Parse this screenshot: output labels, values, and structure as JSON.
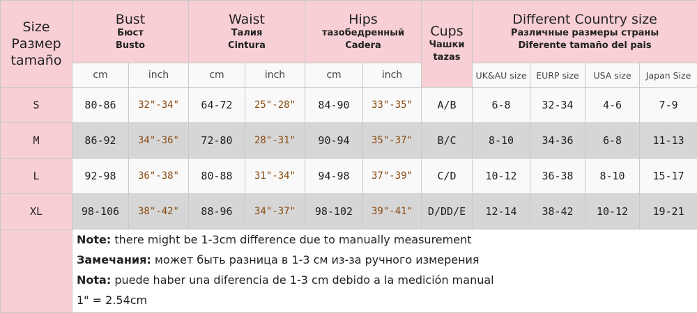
{
  "header": {
    "size": [
      "Size",
      "Размер",
      "tamaño"
    ],
    "bust": {
      "title": "Bust",
      "ru": "Бюст",
      "es": "Busto"
    },
    "waist": {
      "title": "Waist",
      "ru": "Талия",
      "es": "Cintura"
    },
    "hips": {
      "title": "Hips",
      "ru": "тазобедренный",
      "es": "Cadera"
    },
    "cups": {
      "title": "Cups",
      "ru": "Чашки",
      "es": "tazas"
    },
    "country": {
      "title": "Different Country size",
      "ru": "Различные размеры страны",
      "es": "Diferente tamaño del pais"
    },
    "units": {
      "cm": "cm",
      "inch": "inch"
    },
    "country_cols": [
      "UK&AU size",
      "EURP size",
      "USA size",
      "Japan Size"
    ]
  },
  "rows": [
    {
      "size": "S",
      "bust_cm": "80-86",
      "bust_in": "32\"-34\"",
      "waist_cm": "64-72",
      "waist_in": "25\"-28\"",
      "hips_cm": "84-90",
      "hips_in": "33\"-35\"",
      "cups": "A/B",
      "uk": "6-8",
      "eu": "32-34",
      "us": "4-6",
      "jp": "7-9"
    },
    {
      "size": "M",
      "bust_cm": "86-92",
      "bust_in": "34\"-36\"",
      "waist_cm": "72-80",
      "waist_in": "28\"-31\"",
      "hips_cm": "90-94",
      "hips_in": "35\"-37\"",
      "cups": "B/C",
      "uk": "8-10",
      "eu": "34-36",
      "us": "6-8",
      "jp": "11-13"
    },
    {
      "size": "L",
      "bust_cm": "92-98",
      "bust_in": "36\"-38\"",
      "waist_cm": "80-88",
      "waist_in": "31\"-34\"",
      "hips_cm": "94-98",
      "hips_in": "37\"-39\"",
      "cups": "C/D",
      "uk": "10-12",
      "eu": "36-38",
      "us": "8-10",
      "jp": "15-17"
    },
    {
      "size": "XL",
      "bust_cm": "98-106",
      "bust_in": "38\"-42\"",
      "waist_cm": "88-96",
      "waist_in": "34\"-37\"",
      "hips_cm": "98-102",
      "hips_in": "39\"-41\"",
      "cups": "D/DD/E",
      "uk": "12-14",
      "eu": "38-42",
      "us": "10-12",
      "jp": "19-21"
    }
  ],
  "notes": [
    {
      "label": "Note:",
      "text": "  there might be 1-3cm difference due to manually measurement"
    },
    {
      "label": "Замечания:",
      "text": " может быть разница в 1-3 см из-за ручного измерения"
    },
    {
      "label": "Nota:",
      "text": " puede haber una diferencia de 1-3 cm debido a la medición manual"
    },
    {
      "label": "",
      "text": "1\" = 2.54cm"
    }
  ]
}
